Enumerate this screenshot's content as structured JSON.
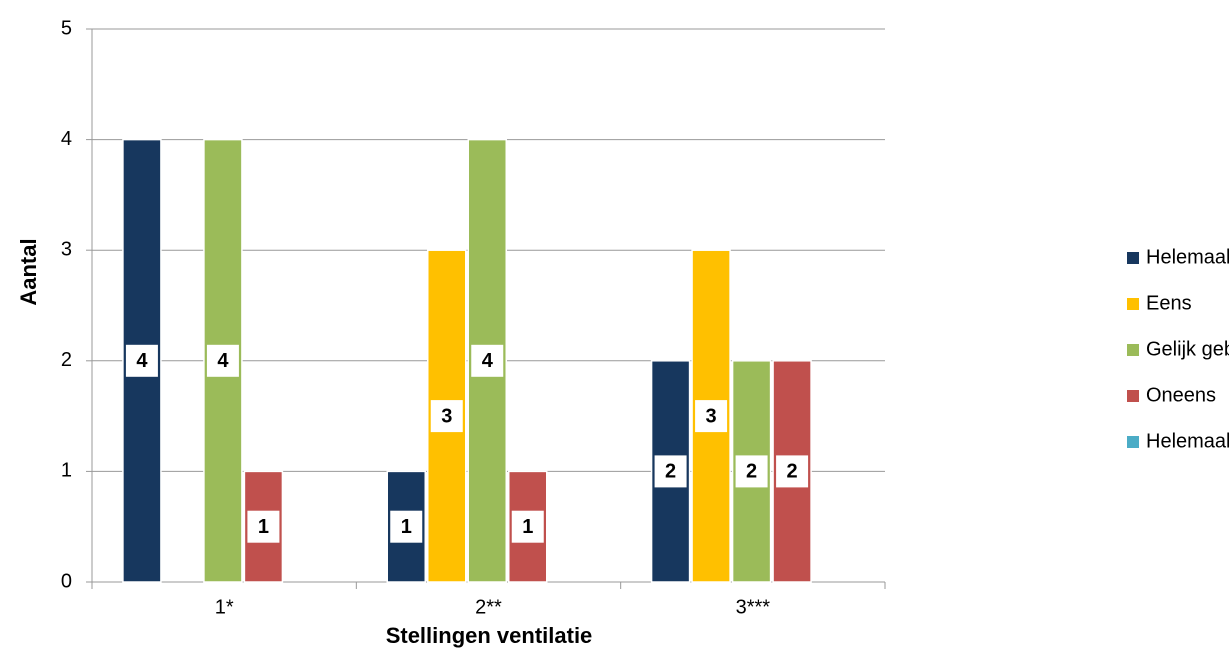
{
  "chart_data": {
    "type": "bar",
    "x_label": "Stellingen ventilatie",
    "y_label": "Aantal",
    "categories": [
      "1*",
      "2**",
      "3***"
    ],
    "series": [
      {
        "name": "Helemaal mee eens",
        "color": "#17375e",
        "values": [
          4,
          1,
          2
        ]
      },
      {
        "name": "Eens",
        "color": "#ffc000",
        "values": [
          null,
          3,
          3
        ]
      },
      {
        "name": "Gelijk gebleven",
        "color": "#9bbb59",
        "values": [
          4,
          4,
          2
        ]
      },
      {
        "name": "Oneens",
        "color": "#c0504d",
        "values": [
          1,
          1,
          2
        ]
      },
      {
        "name": "Helemaal mee oneens",
        "color": "#4bacc6",
        "values": [
          null,
          null,
          null
        ]
      }
    ],
    "ylim": [
      0,
      5
    ],
    "yticks": [
      0,
      1,
      2,
      3,
      4,
      5
    ],
    "grid": true,
    "legend": "right"
  }
}
